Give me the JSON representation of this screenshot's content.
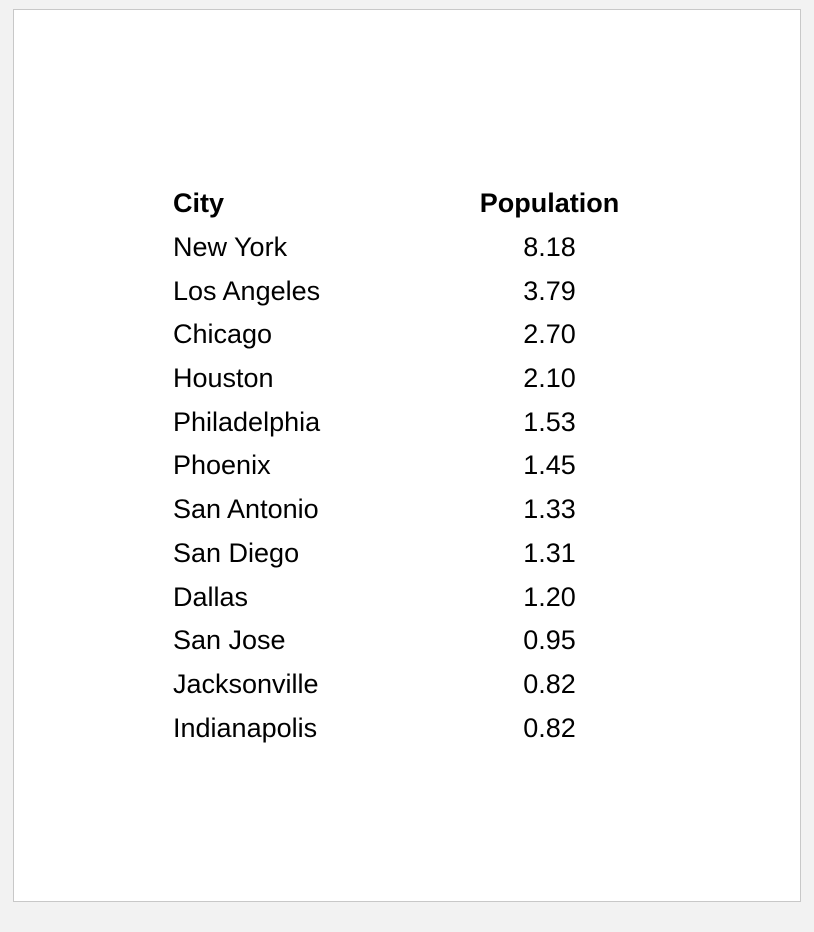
{
  "table": {
    "headers": {
      "city": "City",
      "population": "Population"
    },
    "rows": [
      {
        "city": "New York",
        "population": "8.18"
      },
      {
        "city": "Los Angeles",
        "population": "3.79"
      },
      {
        "city": "Chicago",
        "population": "2.70"
      },
      {
        "city": "Houston",
        "population": "2.10"
      },
      {
        "city": "Philadelphia",
        "population": "1.53"
      },
      {
        "city": "Phoenix",
        "population": "1.45"
      },
      {
        "city": "San Antonio",
        "population": "1.33"
      },
      {
        "city": "San Diego",
        "population": "1.31"
      },
      {
        "city": "Dallas",
        "population": "1.20"
      },
      {
        "city": "San Jose",
        "population": "0.95"
      },
      {
        "city": "Jacksonville",
        "population": "0.82"
      },
      {
        "city": "Indianapolis",
        "population": "0.82"
      }
    ]
  }
}
